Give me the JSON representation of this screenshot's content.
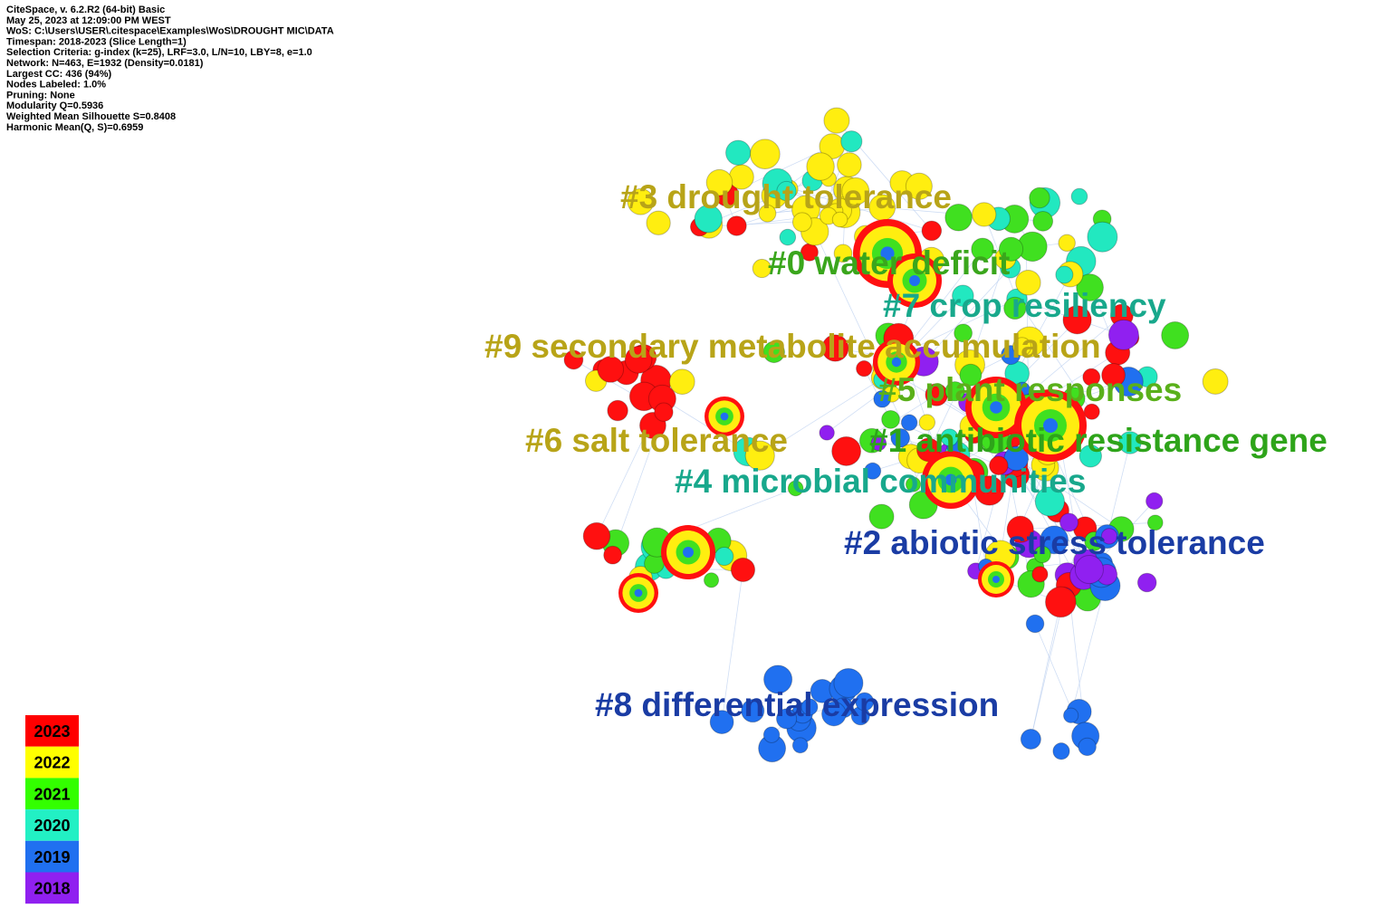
{
  "header": {
    "lines": [
      "CiteSpace, v. 6.2.R2 (64-bit) Basic",
      "May 25, 2023 at 12:09:00 PM WEST",
      "WoS: C:\\Users\\USER\\.citespace\\Examples\\WoS\\DROUGHT MIC\\DATA",
      "Timespan: 2018-2023 (Slice Length=1)",
      "Selection Criteria: g-index (k=25), LRF=3.0, L/N=10, LBY=8, e=1.0",
      "Network: N=463, E=1932 (Density=0.0181)",
      "Largest CC: 436 (94%)",
      "Nodes Labeled: 1.0%",
      "Pruning: None",
      "Modularity Q=0.5936",
      "Weighted Mean Silhouette S=0.8408",
      "Harmonic Mean(Q, S)=0.6959"
    ]
  },
  "clusters": [
    {
      "label": "#3 drought tolerance",
      "color": "#b8a418"
    },
    {
      "label": "#0 water deficit",
      "color": "#3aa61c"
    },
    {
      "label": "#7 crop resiliency",
      "color": "#18a88c"
    },
    {
      "label": "#9 secondary metabolite accumulation",
      "color": "#b8a418"
    },
    {
      "label": "#5 plant responses",
      "color": "#5ab01a"
    },
    {
      "label": "#6 salt tolerance",
      "color": "#b8a418"
    },
    {
      "label": "#1 antibiotic resistance gene",
      "color": "#2ea41a"
    },
    {
      "label": "#4 microbial communities",
      "color": "#18a88c"
    },
    {
      "label": "#2 abiotic stress tolerance",
      "color": "#1a3ca4"
    },
    {
      "label": "#8 differential expression",
      "color": "#1a3ca4"
    }
  ],
  "legend": [
    {
      "year": "2023",
      "color": "#ff0000"
    },
    {
      "year": "2022",
      "color": "#ffff00"
    },
    {
      "year": "2021",
      "color": "#33ff00"
    },
    {
      "year": "2020",
      "color": "#22f0c4"
    },
    {
      "year": "2019",
      "color": "#2070f0"
    },
    {
      "year": "2018",
      "color": "#9020f0"
    }
  ]
}
